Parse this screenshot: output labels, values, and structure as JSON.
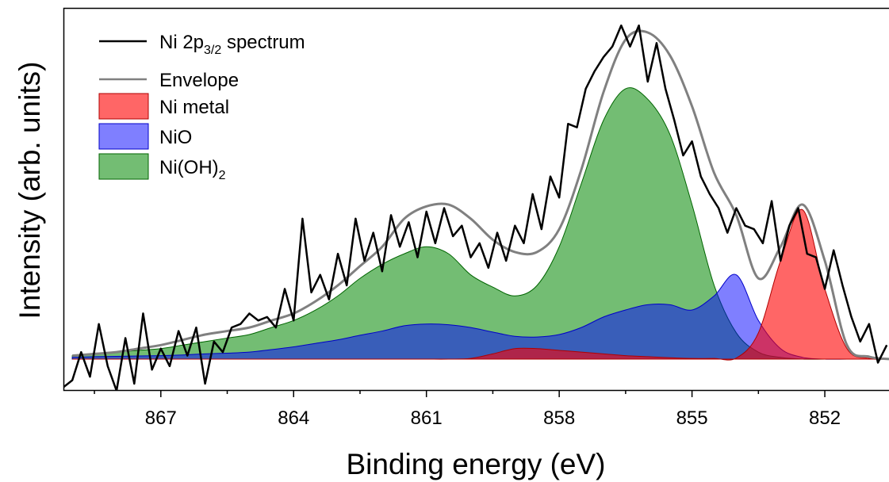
{
  "chart_data": {
    "type": "area",
    "x_label": "Binding energy (eV)",
    "y_label": "Intensity (arb. units)",
    "xlim": [
      869.2,
      850.55
    ],
    "ylim": [
      -0.088,
      1
    ],
    "xticks": [
      867,
      864,
      861,
      858,
      855,
      852
    ],
    "xminorticks": [
      868.5,
      865.5,
      862.5,
      859.5,
      856.5,
      853.5
    ],
    "legend": "upper left",
    "x": [
      869,
      868.5,
      868,
      867.5,
      867,
      866.5,
      866,
      865.5,
      865,
      864.5,
      864,
      863.5,
      863,
      862.5,
      862,
      861.5,
      861,
      860.5,
      860,
      859.5,
      859,
      858.5,
      858,
      857.5,
      857,
      856.5,
      856,
      855.5,
      855,
      854.5,
      854,
      853.5,
      853,
      852.5,
      852,
      851.5,
      851,
      850.5
    ],
    "series": [
      {
        "name": [
          "Ni 2p",
          "3/2",
          " spectrum"
        ],
        "style": "line",
        "color": "#000000",
        "x": [
          869.2,
          869.0,
          868.8,
          868.6,
          868.4,
          868.2,
          868.0,
          867.8,
          867.6,
          867.4,
          867.2,
          867.0,
          866.8,
          866.6,
          866.4,
          866.2,
          866.0,
          865.8,
          865.6,
          865.4,
          865.2,
          865.0,
          864.8,
          864.6,
          864.4,
          864.2,
          864.0,
          863.8,
          863.6,
          863.4,
          863.2,
          863.0,
          862.8,
          862.6,
          862.4,
          862.2,
          862.0,
          861.8,
          861.6,
          861.4,
          861.2,
          861.0,
          860.8,
          860.6,
          860.4,
          860.2,
          860.0,
          859.8,
          859.6,
          859.4,
          859.2,
          859.0,
          858.8,
          858.6,
          858.4,
          858.2,
          858.0,
          857.8,
          857.6,
          857.4,
          857.2,
          857.0,
          856.8,
          856.6,
          856.4,
          856.2,
          856.0,
          855.8,
          855.6,
          855.4,
          855.2,
          855.0,
          854.8,
          854.6,
          854.4,
          854.2,
          854.0,
          853.8,
          853.6,
          853.4,
          853.2,
          853.0,
          852.8,
          852.6,
          852.4,
          852.2,
          852.0,
          851.8,
          851.6,
          851.4,
          851.2,
          851.0,
          850.8,
          850.6
        ],
        "values": [
          -0.08,
          -0.06,
          0.02,
          -0.05,
          0.1,
          -0.02,
          -0.09,
          0.06,
          -0.07,
          0.13,
          -0.03,
          0.03,
          -0.02,
          0.08,
          0.01,
          0.09,
          -0.07,
          0.05,
          0.02,
          0.09,
          0.1,
          0.13,
          0.11,
          0.12,
          0.09,
          0.2,
          0.11,
          0.4,
          0.19,
          0.24,
          0.17,
          0.3,
          0.21,
          0.4,
          0.28,
          0.36,
          0.25,
          0.41,
          0.32,
          0.39,
          0.29,
          0.42,
          0.33,
          0.43,
          0.35,
          0.38,
          0.29,
          0.33,
          0.26,
          0.36,
          0.28,
          0.38,
          0.33,
          0.47,
          0.37,
          0.52,
          0.46,
          0.67,
          0.66,
          0.77,
          0.82,
          0.86,
          0.89,
          0.95,
          0.89,
          0.95,
          0.79,
          0.9,
          0.77,
          0.68,
          0.58,
          0.62,
          0.52,
          0.47,
          0.43,
          0.36,
          0.43,
          0.38,
          0.37,
          0.33,
          0.45,
          0.28,
          0.38,
          0.43,
          0.3,
          0.29,
          0.2,
          0.31,
          0.21,
          0.12,
          0.05,
          0.1,
          -0.01,
          0.04
        ]
      },
      {
        "name": [
          "Envelope"
        ],
        "style": "line",
        "color": "#808080",
        "values": [
          0.01,
          0.015,
          0.02,
          0.03,
          0.04,
          0.055,
          0.07,
          0.08,
          0.09,
          0.11,
          0.13,
          0.165,
          0.21,
          0.265,
          0.32,
          0.4,
          0.435,
          0.44,
          0.4,
          0.34,
          0.305,
          0.305,
          0.37,
          0.54,
          0.76,
          0.91,
          0.93,
          0.865,
          0.72,
          0.53,
          0.41,
          0.23,
          0.32,
          0.44,
          0.28,
          0.04,
          0.007,
          0
        ]
      },
      {
        "name": [
          "Ni metal"
        ],
        "style": "area",
        "color": "rgba(255,0,0,0.6)",
        "edge": "#b00000",
        "values": [
          0,
          0,
          0,
          0,
          0,
          0,
          0,
          0,
          0,
          0,
          0,
          0,
          0,
          0,
          0,
          0,
          0,
          0,
          0.002,
          0.015,
          0.03,
          0.03,
          0.025,
          0.02,
          0.015,
          0.01,
          0.007,
          0.004,
          0.002,
          0.002,
          0.003,
          0.075,
          0.28,
          0.425,
          0.2,
          0.03,
          0.002,
          0
        ]
      },
      {
        "name": [
          "NiO"
        ],
        "style": "area",
        "color": "rgba(0,0,255,0.5)",
        "edge": "#0000c8",
        "values": [
          0.005,
          0.007,
          0.008,
          0.009,
          0.01,
          0.012,
          0.015,
          0.017,
          0.02,
          0.027,
          0.035,
          0.045,
          0.055,
          0.068,
          0.08,
          0.095,
          0.1,
          0.098,
          0.09,
          0.077,
          0.065,
          0.063,
          0.07,
          0.09,
          0.12,
          0.14,
          0.155,
          0.155,
          0.14,
          0.18,
          0.24,
          0.11,
          0.03,
          0.005,
          0,
          0,
          0,
          0
        ]
      },
      {
        "name": [
          "Ni(OH)",
          "2"
        ],
        "style": "area",
        "color": "rgba(0,135,0,0.55)",
        "edge": "#006400",
        "values": [
          0.01,
          0.015,
          0.02,
          0.025,
          0.03,
          0.04,
          0.05,
          0.06,
          0.07,
          0.09,
          0.11,
          0.14,
          0.18,
          0.23,
          0.27,
          0.3,
          0.32,
          0.3,
          0.24,
          0.205,
          0.18,
          0.21,
          0.32,
          0.5,
          0.68,
          0.77,
          0.74,
          0.64,
          0.44,
          0.21,
          0.075,
          0.02,
          0.005,
          0,
          0,
          0,
          0,
          0
        ]
      }
    ]
  }
}
